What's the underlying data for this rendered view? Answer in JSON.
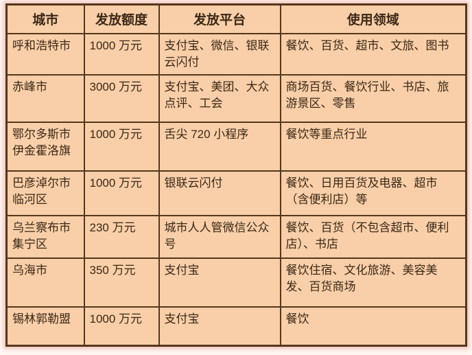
{
  "colors": {
    "table_bg": "#f8cfa8",
    "border": "#54371d",
    "text": "#3c2817",
    "halo": "#e9948a",
    "page_bg": "#fdf7f2"
  },
  "table": {
    "columns": [
      "城市",
      "发放额度",
      "发放平台",
      "使用领域"
    ],
    "rows": [
      {
        "city": "呼和浩特市",
        "amount": "1000 万元",
        "platform": "支付宝、微信、银联云闪付",
        "usage": "餐饮、百货、超市、文旅、图书"
      },
      {
        "city": "赤峰市",
        "amount": "3000 万元",
        "platform": "支付宝、美团、大众点评、工会",
        "usage": "商场百货、餐饮行业、书店、旅游景区、零售"
      },
      {
        "city": "鄂尔多斯市伊金霍洛旗",
        "amount": "1000 万元",
        "platform": "舌尖 720 小程序",
        "usage": "餐饮等重点行业"
      },
      {
        "city": "巴彦淖尔市临河区",
        "amount": "1000 万元",
        "platform": "银联云闪付",
        "usage": "餐饮、日用百货及电器、超市（含便利店）等"
      },
      {
        "city": "乌兰察布市集宁区",
        "amount": "230 万元",
        "platform": "城市人人管微信公众号",
        "usage": "餐饮、百货（不包含超市、便利店）、书店"
      },
      {
        "city": "乌海市",
        "amount": "350 万元",
        "platform": "支付宝",
        "usage": "餐饮住宿、文化旅游、美容美发、百货商场"
      },
      {
        "city": "锡林郭勒盟",
        "amount": "1000 万元",
        "platform": "支付宝",
        "usage": "餐饮"
      }
    ]
  }
}
